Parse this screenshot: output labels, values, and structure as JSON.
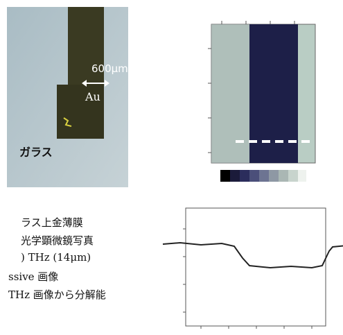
{
  "photo": {
    "width_label": "600µm",
    "metal_label": "Au",
    "substrate_label": "ガラス"
  },
  "caption_lines": [
    "ラス上金薄膜",
    "光学顕微鏡写真",
    ") THz (14μm)",
    "ssive 画像",
    "THz 画像から分解能"
  ]
}
